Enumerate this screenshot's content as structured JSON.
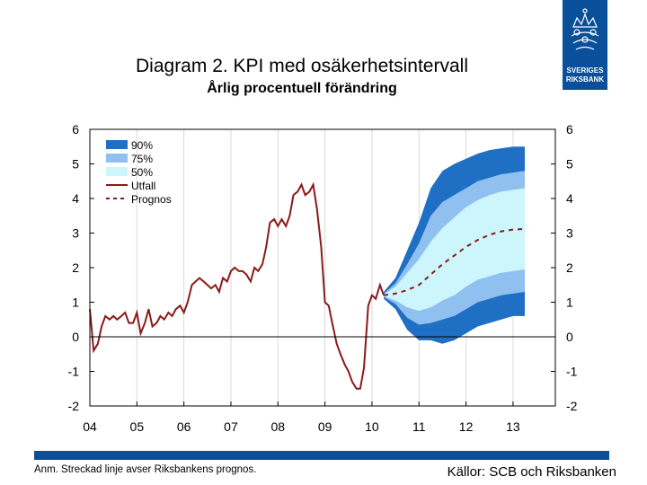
{
  "header": {
    "title": "Diagram 2. KPI med osäkerhetsintervall",
    "subtitle": "Årlig procentuell förändring"
  },
  "logo": {
    "line1": "SVERIGES",
    "line2": "RIKSBANK"
  },
  "footer": {
    "note": "Anm. Streckad linje avser Riksbankens prognos.",
    "sources": "Källor: SCB och Riksbanken"
  },
  "colors": {
    "band90": "#1f6fc4",
    "band75": "#8fc0f0",
    "band50": "#ccf6fb",
    "actual": "#8b1a1a",
    "forecast": "#8b1a1a",
    "brand": "#0a4f9a"
  },
  "chart_data": {
    "type": "line",
    "ylim": [
      -2,
      6
    ],
    "xlim": [
      2004.0,
      2013.9
    ],
    "yticks": [
      -2,
      -1,
      0,
      1,
      2,
      3,
      4,
      5,
      6
    ],
    "ytick_labels": [
      "-2",
      "-1",
      "0",
      "1",
      "2",
      "3",
      "4",
      "5",
      "6"
    ],
    "xticks": [
      2004,
      2005,
      2006,
      2007,
      2008,
      2009,
      2010,
      2011,
      2012,
      2013
    ],
    "xtick_labels": [
      "04",
      "05",
      "06",
      "07",
      "08",
      "09",
      "10",
      "11",
      "12",
      "13"
    ],
    "grid": "vertical",
    "legend_position": "top-left",
    "legend": [
      {
        "label": "90%",
        "kind": "band",
        "key": "band90"
      },
      {
        "label": "75%",
        "kind": "band",
        "key": "band75"
      },
      {
        "label": "50%",
        "kind": "band",
        "key": "band50"
      },
      {
        "label": "Utfall",
        "kind": "line",
        "key": "actual"
      },
      {
        "label": "Prognos",
        "kind": "dashed",
        "key": "forecast"
      }
    ],
    "actual": {
      "name": "Utfall",
      "x": [
        2004.0,
        2004.08,
        2004.17,
        2004.25,
        2004.33,
        2004.42,
        2004.5,
        2004.58,
        2004.67,
        2004.75,
        2004.83,
        2004.92,
        2005.0,
        2005.08,
        2005.17,
        2005.25,
        2005.33,
        2005.42,
        2005.5,
        2005.58,
        2005.67,
        2005.75,
        2005.83,
        2005.92,
        2006.0,
        2006.08,
        2006.17,
        2006.25,
        2006.33,
        2006.42,
        2006.5,
        2006.58,
        2006.67,
        2006.75,
        2006.83,
        2006.92,
        2007.0,
        2007.08,
        2007.17,
        2007.25,
        2007.33,
        2007.42,
        2007.5,
        2007.58,
        2007.67,
        2007.75,
        2007.83,
        2007.92,
        2008.0,
        2008.08,
        2008.17,
        2008.25,
        2008.33,
        2008.42,
        2008.5,
        2008.58,
        2008.67,
        2008.75,
        2008.83,
        2008.92,
        2009.0,
        2009.08,
        2009.17,
        2009.25,
        2009.33,
        2009.42,
        2009.5,
        2009.58,
        2009.67,
        2009.75,
        2009.83,
        2009.92,
        2010.0,
        2010.08,
        2010.17,
        2010.25
      ],
      "y": [
        0.8,
        -0.4,
        -0.2,
        0.3,
        0.6,
        0.5,
        0.6,
        0.5,
        0.6,
        0.7,
        0.4,
        0.4,
        0.7,
        0.1,
        0.4,
        0.8,
        0.3,
        0.4,
        0.6,
        0.5,
        0.7,
        0.6,
        0.8,
        0.9,
        0.7,
        1.0,
        1.5,
        1.6,
        1.7,
        1.6,
        1.5,
        1.4,
        1.5,
        1.3,
        1.7,
        1.6,
        1.9,
        2.0,
        1.9,
        1.9,
        1.8,
        1.6,
        2.0,
        1.9,
        2.1,
        2.6,
        3.3,
        3.4,
        3.2,
        3.4,
        3.2,
        3.5,
        4.1,
        4.2,
        4.4,
        4.1,
        4.2,
        4.4,
        3.7,
        2.6,
        1.0,
        0.9,
        0.3,
        -0.2,
        -0.5,
        -0.8,
        -1.0,
        -1.3,
        -1.5,
        -1.5,
        -0.9,
        0.9,
        1.2,
        1.1,
        1.5,
        1.2
      ]
    },
    "forecast": {
      "name": "Prognos",
      "x": [
        2010.25,
        2010.5,
        2010.75,
        2011.0,
        2011.25,
        2011.5,
        2011.75,
        2012.0,
        2012.25,
        2012.5,
        2012.75,
        2013.0,
        2013.25
      ],
      "y": [
        1.2,
        1.25,
        1.35,
        1.5,
        1.8,
        2.1,
        2.35,
        2.6,
        2.8,
        2.95,
        3.05,
        3.1,
        3.12
      ]
    },
    "bands": {
      "x": [
        2010.25,
        2010.5,
        2010.75,
        2011.0,
        2011.25,
        2011.5,
        2011.75,
        2012.0,
        2012.25,
        2012.5,
        2012.75,
        2013.0,
        2013.25
      ],
      "band90": {
        "lower": [
          1.1,
          0.8,
          0.2,
          -0.1,
          -0.1,
          -0.2,
          -0.1,
          0.1,
          0.3,
          0.4,
          0.5,
          0.6,
          0.6
        ],
        "upper": [
          1.3,
          1.7,
          2.5,
          3.3,
          4.3,
          4.8,
          5.0,
          5.15,
          5.3,
          5.4,
          5.45,
          5.5,
          5.5
        ]
      },
      "band75": {
        "lower": [
          1.15,
          0.95,
          0.55,
          0.35,
          0.4,
          0.5,
          0.6,
          0.8,
          1.0,
          1.1,
          1.2,
          1.25,
          1.3
        ],
        "upper": [
          1.25,
          1.55,
          2.1,
          2.7,
          3.5,
          3.9,
          4.1,
          4.3,
          4.5,
          4.6,
          4.7,
          4.75,
          4.8
        ]
      },
      "band50": {
        "lower": [
          1.18,
          1.05,
          0.85,
          0.75,
          0.85,
          1.05,
          1.2,
          1.45,
          1.65,
          1.75,
          1.85,
          1.9,
          1.95
        ],
        "upper": [
          1.22,
          1.45,
          1.85,
          2.25,
          2.75,
          3.15,
          3.45,
          3.75,
          3.95,
          4.1,
          4.2,
          4.25,
          4.3
        ]
      }
    }
  }
}
